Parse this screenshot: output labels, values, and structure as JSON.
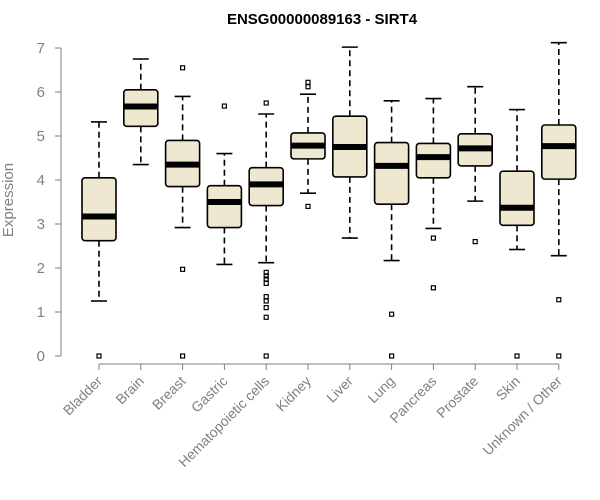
{
  "chart_data": {
    "type": "boxplot",
    "title": "ENSG00000089163 - SIRT4",
    "xlabel": "",
    "ylabel": "Expression",
    "ylim": [
      0,
      7
    ],
    "yticks": [
      0,
      1,
      2,
      3,
      4,
      5,
      6,
      7
    ],
    "box_color": "#EFE8D0",
    "categories": [
      "Bladder",
      "Brain",
      "Breast",
      "Gastric",
      "Hematopoietic cells",
      "Kidney",
      "Liver",
      "Lung",
      "Pancreas",
      "Prostate",
      "Skin",
      "Unknown / Other"
    ],
    "series": [
      {
        "name": "Bladder",
        "whisker_low": 1.25,
        "q1": 2.62,
        "median": 3.17,
        "q3": 4.05,
        "whisker_high": 5.32,
        "outliers": [
          0.0
        ]
      },
      {
        "name": "Brain",
        "whisker_low": 4.35,
        "q1": 5.22,
        "median": 5.67,
        "q3": 6.05,
        "whisker_high": 6.75,
        "outliers": []
      },
      {
        "name": "Breast",
        "whisker_low": 2.92,
        "q1": 3.85,
        "median": 4.35,
        "q3": 4.9,
        "whisker_high": 5.9,
        "outliers": [
          6.55,
          1.97,
          0.0
        ]
      },
      {
        "name": "Gastric",
        "whisker_low": 2.08,
        "q1": 2.92,
        "median": 3.5,
        "q3": 3.87,
        "whisker_high": 4.6,
        "outliers": [
          5.68
        ]
      },
      {
        "name": "Hematopoietic cells",
        "whisker_low": 2.12,
        "q1": 3.42,
        "median": 3.9,
        "q3": 4.28,
        "whisker_high": 5.5,
        "outliers": [
          5.75,
          1.9,
          1.82,
          1.75,
          1.65,
          1.35,
          1.25,
          1.1,
          0.88,
          0.0
        ]
      },
      {
        "name": "Kidney",
        "whisker_low": 3.7,
        "q1": 4.48,
        "median": 4.78,
        "q3": 5.07,
        "whisker_high": 5.95,
        "outliers": [
          6.22,
          6.12,
          3.4
        ]
      },
      {
        "name": "Liver",
        "whisker_low": 2.68,
        "q1": 4.07,
        "median": 4.75,
        "q3": 5.45,
        "whisker_high": 7.02,
        "outliers": []
      },
      {
        "name": "Lung",
        "whisker_low": 2.17,
        "q1": 3.45,
        "median": 4.32,
        "q3": 4.85,
        "whisker_high": 5.8,
        "outliers": [
          0.95,
          0.0
        ]
      },
      {
        "name": "Pancreas",
        "whisker_low": 2.9,
        "q1": 4.05,
        "median": 4.52,
        "q3": 4.83,
        "whisker_high": 5.85,
        "outliers": [
          2.68,
          1.55
        ]
      },
      {
        "name": "Prostate",
        "whisker_low": 3.52,
        "q1": 4.32,
        "median": 4.72,
        "q3": 5.05,
        "whisker_high": 6.12,
        "outliers": [
          2.6
        ]
      },
      {
        "name": "Skin",
        "whisker_low": 2.42,
        "q1": 2.97,
        "median": 3.37,
        "q3": 4.2,
        "whisker_high": 5.6,
        "outliers": [
          0.0
        ]
      },
      {
        "name": "Unknown / Other",
        "whisker_low": 2.28,
        "q1": 4.02,
        "median": 4.77,
        "q3": 5.25,
        "whisker_high": 7.12,
        "outliers": [
          1.28,
          0.0
        ]
      }
    ]
  }
}
